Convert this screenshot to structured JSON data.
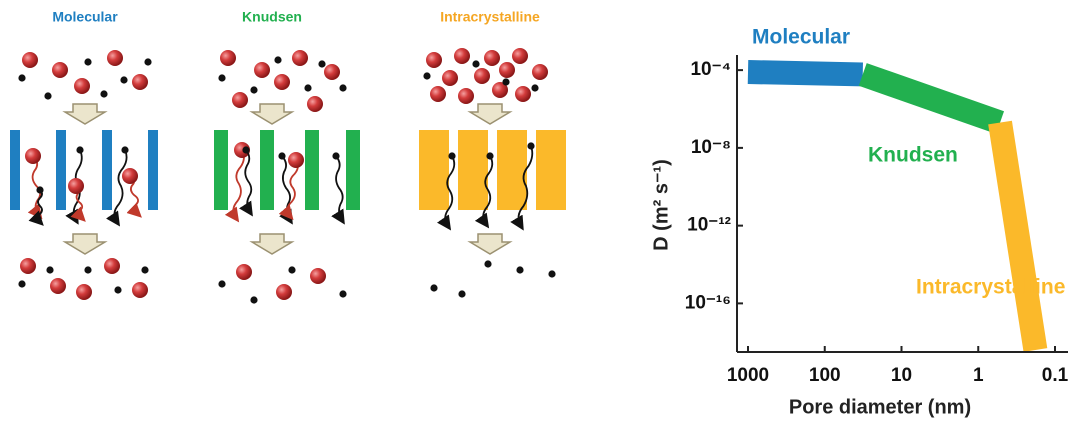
{
  "diagram": {
    "panels": [
      {
        "title": "Molecular"
      },
      {
        "title": "Knudsen"
      },
      {
        "title": "Intracrystalline"
      }
    ]
  },
  "chart_data": {
    "type": "line",
    "xlabel": "Pore diameter (nm)",
    "ylabel": "D (m² s⁻¹)",
    "xscale": "log",
    "yscale": "log",
    "xlim": [
      1000,
      0.1
    ],
    "ylim": [
      4e-19,
      0.0006
    ],
    "xticks": [
      1000,
      100,
      10,
      1,
      0.1
    ],
    "yticks": [
      {
        "value": 0.0001,
        "label": "10⁻⁴"
      },
      {
        "value": 1e-08,
        "label": "10⁻⁸"
      },
      {
        "value": 1e-12,
        "label": "10⁻¹²"
      },
      {
        "value": 1e-16,
        "label": "10⁻¹⁶"
      }
    ],
    "series": [
      {
        "name": "Molecular",
        "color": "#1f7fc1",
        "x": [
          1000,
          32
        ],
        "values": [
          8e-05,
          6e-05
        ]
      },
      {
        "name": "Knudsen",
        "color": "#22b04f",
        "x": [
          32,
          0.52
        ],
        "values": [
          6e-05,
          2e-07
        ]
      },
      {
        "name": "Intracrystalline",
        "color": "#fbb92a",
        "x": [
          0.52,
          0.18
        ],
        "values": [
          2e-07,
          4e-19
        ]
      }
    ]
  }
}
